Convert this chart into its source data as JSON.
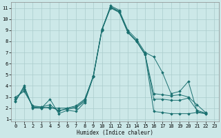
{
  "xlabel": "Humidex (Indice chaleur)",
  "bg_color": "#cce8e8",
  "grid_color": "#aacccc",
  "line_color": "#1a7070",
  "xlim": [
    -0.5,
    23.5
  ],
  "ylim": [
    0.8,
    11.5
  ],
  "yticks": [
    1,
    2,
    3,
    4,
    5,
    6,
    7,
    8,
    9,
    10,
    11
  ],
  "xticks": [
    0,
    1,
    2,
    3,
    4,
    5,
    6,
    7,
    8,
    9,
    10,
    11,
    12,
    13,
    14,
    15,
    16,
    17,
    18,
    19,
    20,
    21,
    22,
    23
  ],
  "series": [
    [
      2.6,
      4.0,
      2.0,
      2.0,
      2.8,
      1.5,
      1.8,
      1.7,
      2.5,
      4.8,
      9.0,
      11.2,
      10.8,
      9.0,
      8.2,
      7.0,
      6.6,
      5.2,
      3.3,
      3.5,
      4.4,
      1.7,
      1.5
    ],
    [
      2.6,
      3.9,
      2.1,
      2.1,
      2.3,
      1.7,
      2.0,
      2.1,
      2.7,
      4.9,
      9.1,
      11.1,
      10.7,
      8.8,
      8.0,
      6.8,
      3.3,
      3.2,
      3.1,
      3.2,
      3.0,
      2.3,
      1.6
    ],
    [
      2.8,
      3.7,
      2.1,
      2.0,
      2.1,
      1.8,
      1.9,
      2.0,
      2.6,
      4.85,
      9.05,
      11.05,
      10.65,
      8.85,
      8.05,
      6.85,
      2.8,
      2.8,
      2.7,
      2.7,
      2.9,
      1.8,
      1.55
    ],
    [
      3.0,
      3.5,
      2.2,
      2.1,
      2.0,
      2.0,
      2.0,
      2.2,
      2.8,
      4.8,
      9.0,
      11.0,
      10.6,
      8.8,
      8.0,
      6.8,
      1.7,
      1.6,
      1.5,
      1.5,
      1.5,
      1.6,
      1.5
    ]
  ]
}
